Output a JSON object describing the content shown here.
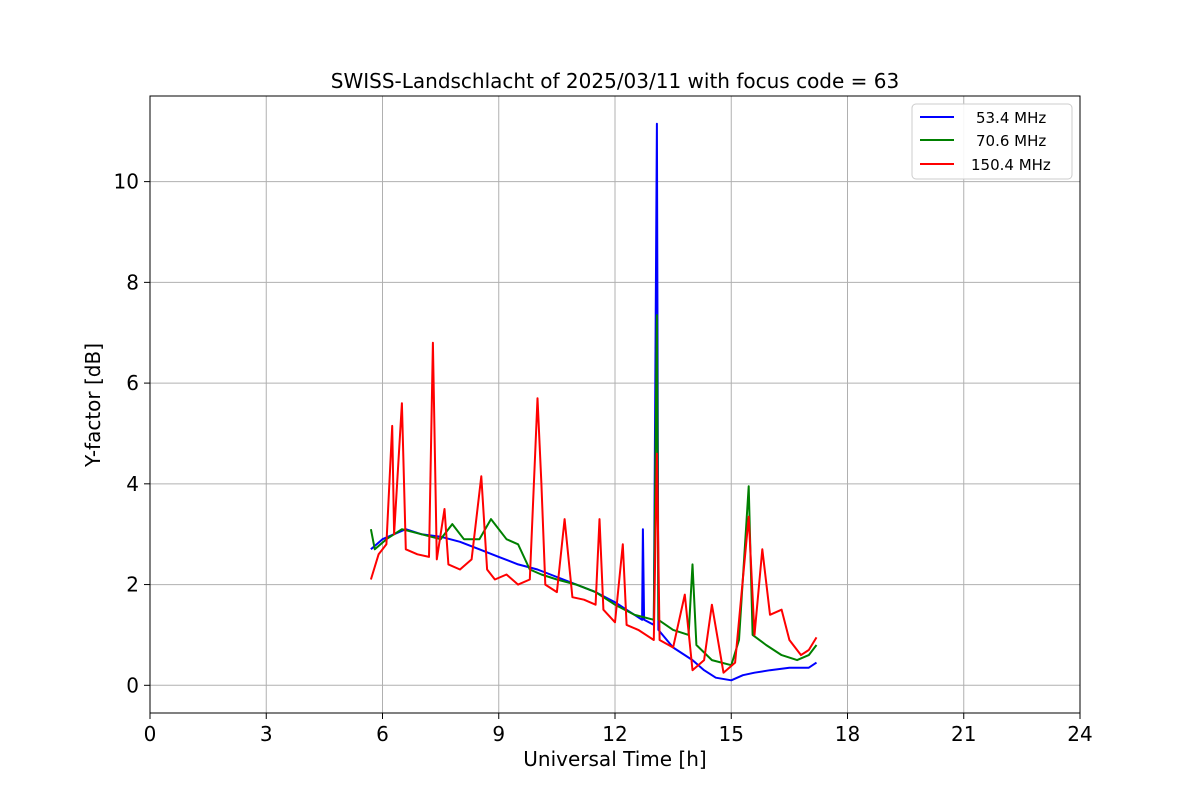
{
  "chart_data": {
    "type": "line",
    "title": "SWISS-Landschlacht of 2025/03/11 with focus code = 63",
    "xlabel": "Universal Time [h]",
    "ylabel": "Y-factor [dB]",
    "xlim": [
      0,
      24
    ],
    "ylim": [
      -0.55,
      11.7
    ],
    "xticks": [
      0,
      3,
      6,
      9,
      12,
      15,
      18,
      21,
      24
    ],
    "yticks": [
      0,
      2,
      4,
      6,
      8,
      10
    ],
    "grid": true,
    "legend_position": "top-right",
    "series": [
      {
        "name": "53.4 MHz",
        "color": "#0000ff",
        "points": [
          [
            5.7,
            2.7
          ],
          [
            6.0,
            2.9
          ],
          [
            6.3,
            3.0
          ],
          [
            6.6,
            3.1
          ],
          [
            7.0,
            3.0
          ],
          [
            7.5,
            2.95
          ],
          [
            8.0,
            2.85
          ],
          [
            8.5,
            2.7
          ],
          [
            9.0,
            2.55
          ],
          [
            9.5,
            2.4
          ],
          [
            10.0,
            2.3
          ],
          [
            10.5,
            2.15
          ],
          [
            11.0,
            2.0
          ],
          [
            11.5,
            1.85
          ],
          [
            12.0,
            1.65
          ],
          [
            12.4,
            1.45
          ],
          [
            12.7,
            1.3
          ],
          [
            12.72,
            3.1
          ],
          [
            12.75,
            1.3
          ],
          [
            13.0,
            1.2
          ],
          [
            13.08,
            11.15
          ],
          [
            13.12,
            1.1
          ],
          [
            13.5,
            0.75
          ],
          [
            14.0,
            0.5
          ],
          [
            14.3,
            0.3
          ],
          [
            14.6,
            0.15
          ],
          [
            15.0,
            0.1
          ],
          [
            15.3,
            0.2
          ],
          [
            15.6,
            0.25
          ],
          [
            16.0,
            0.3
          ],
          [
            16.5,
            0.35
          ],
          [
            17.0,
            0.35
          ],
          [
            17.2,
            0.45
          ]
        ]
      },
      {
        "name": "70.6 MHz",
        "color": "#008000",
        "points": [
          [
            5.7,
            3.1
          ],
          [
            5.8,
            2.7
          ],
          [
            6.1,
            2.9
          ],
          [
            6.5,
            3.1
          ],
          [
            7.0,
            3.0
          ],
          [
            7.5,
            2.9
          ],
          [
            7.8,
            3.2
          ],
          [
            8.1,
            2.9
          ],
          [
            8.5,
            2.9
          ],
          [
            8.8,
            3.3
          ],
          [
            9.2,
            2.9
          ],
          [
            9.5,
            2.8
          ],
          [
            9.8,
            2.3
          ],
          [
            10.1,
            2.2
          ],
          [
            10.5,
            2.1
          ],
          [
            11.0,
            2.0
          ],
          [
            11.5,
            1.85
          ],
          [
            12.0,
            1.6
          ],
          [
            12.5,
            1.4
          ],
          [
            13.0,
            1.3
          ],
          [
            13.08,
            7.35
          ],
          [
            13.12,
            1.3
          ],
          [
            13.5,
            1.1
          ],
          [
            13.9,
            1.0
          ],
          [
            14.0,
            2.4
          ],
          [
            14.1,
            0.8
          ],
          [
            14.5,
            0.5
          ],
          [
            15.0,
            0.4
          ],
          [
            15.2,
            0.9
          ],
          [
            15.45,
            3.95
          ],
          [
            15.55,
            1.0
          ],
          [
            15.9,
            0.8
          ],
          [
            16.3,
            0.6
          ],
          [
            16.7,
            0.5
          ],
          [
            17.0,
            0.6
          ],
          [
            17.2,
            0.8
          ]
        ]
      },
      {
        "name": "150.4 MHz",
        "color": "#ff0000",
        "points": [
          [
            5.7,
            2.1
          ],
          [
            5.9,
            2.6
          ],
          [
            6.1,
            2.8
          ],
          [
            6.25,
            5.15
          ],
          [
            6.3,
            3.0
          ],
          [
            6.5,
            5.6
          ],
          [
            6.6,
            2.7
          ],
          [
            6.9,
            2.6
          ],
          [
            7.2,
            2.55
          ],
          [
            7.3,
            6.8
          ],
          [
            7.4,
            2.5
          ],
          [
            7.6,
            3.5
          ],
          [
            7.7,
            2.4
          ],
          [
            8.0,
            2.3
          ],
          [
            8.3,
            2.5
          ],
          [
            8.55,
            4.15
          ],
          [
            8.7,
            2.3
          ],
          [
            8.9,
            2.1
          ],
          [
            9.2,
            2.2
          ],
          [
            9.5,
            2.0
          ],
          [
            9.8,
            2.1
          ],
          [
            9.95,
            4.8
          ],
          [
            10.0,
            5.7
          ],
          [
            10.1,
            4.0
          ],
          [
            10.2,
            2.0
          ],
          [
            10.5,
            1.85
          ],
          [
            10.7,
            3.3
          ],
          [
            10.9,
            1.75
          ],
          [
            11.2,
            1.7
          ],
          [
            11.5,
            1.6
          ],
          [
            11.6,
            3.3
          ],
          [
            11.7,
            1.5
          ],
          [
            12.0,
            1.25
          ],
          [
            12.2,
            2.8
          ],
          [
            12.3,
            1.2
          ],
          [
            12.6,
            1.1
          ],
          [
            13.0,
            0.9
          ],
          [
            13.08,
            4.6
          ],
          [
            13.15,
            0.9
          ],
          [
            13.5,
            0.75
          ],
          [
            13.8,
            1.8
          ],
          [
            14.0,
            0.3
          ],
          [
            14.3,
            0.5
          ],
          [
            14.5,
            1.6
          ],
          [
            14.8,
            0.25
          ],
          [
            15.1,
            0.45
          ],
          [
            15.45,
            3.35
          ],
          [
            15.6,
            1.0
          ],
          [
            15.8,
            2.7
          ],
          [
            16.0,
            1.4
          ],
          [
            16.3,
            1.5
          ],
          [
            16.5,
            0.9
          ],
          [
            16.8,
            0.6
          ],
          [
            17.0,
            0.7
          ],
          [
            17.2,
            0.95
          ]
        ]
      }
    ]
  }
}
